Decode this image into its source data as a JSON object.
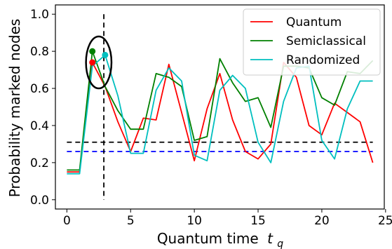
{
  "chart_data": {
    "type": "line",
    "xlabel": "Quantum time",
    "xlabel_sub": "q",
    "xlabel_var": "t",
    "ylabel": "Probability marked nodes",
    "xlim": [
      -0.9,
      24.9
    ],
    "ylim": [
      -0.05,
      1.05
    ],
    "xticks": [
      0,
      5,
      10,
      15,
      20,
      25
    ],
    "yticks": [
      0.0,
      0.2,
      0.4,
      0.6,
      0.8,
      1.0
    ],
    "xtick_labels": [
      "0",
      "5",
      "10",
      "15",
      "20",
      "25"
    ],
    "ytick_labels": [
      "0.0",
      "0.2",
      "0.4",
      "0.6",
      "0.8",
      "1.0"
    ],
    "grid": false,
    "legend_position": "upper right",
    "series": [
      {
        "name": "Quantum",
        "color": "#ff0000",
        "x": [
          0,
          1,
          2,
          3,
          4,
          5,
          6,
          7,
          8,
          9,
          10,
          11,
          12,
          13,
          14,
          15,
          16,
          17,
          18,
          19,
          20,
          21,
          22,
          23,
          24
        ],
        "y": [
          0.15,
          0.15,
          0.74,
          0.61,
          0.42,
          0.26,
          0.44,
          0.43,
          0.73,
          0.47,
          0.21,
          0.49,
          0.68,
          0.43,
          0.26,
          0.22,
          0.3,
          0.74,
          0.66,
          0.4,
          0.35,
          0.52,
          0.47,
          0.42,
          0.2
        ]
      },
      {
        "name": "Semiclassical",
        "color": "#008000",
        "x": [
          0,
          1,
          2,
          3,
          4,
          5,
          6,
          7,
          8,
          9,
          10,
          11,
          12,
          13,
          14,
          15,
          16,
          17,
          18,
          19,
          20,
          21,
          22,
          23,
          24
        ],
        "y": [
          0.16,
          0.16,
          0.8,
          0.61,
          0.48,
          0.38,
          0.38,
          0.68,
          0.66,
          0.61,
          0.32,
          0.34,
          0.76,
          0.63,
          0.53,
          0.55,
          0.39,
          0.72,
          0.72,
          0.71,
          0.55,
          0.51,
          0.69,
          0.68,
          0.75
        ]
      },
      {
        "name": "Randomized",
        "color": "#00bfbf",
        "x": [
          0,
          1,
          2,
          3,
          4,
          5,
          6,
          7,
          8,
          9,
          10,
          11,
          12,
          13,
          14,
          15,
          16,
          17,
          18,
          19,
          20,
          21,
          22,
          23,
          24
        ],
        "y": [
          0.14,
          0.14,
          0.72,
          0.78,
          0.56,
          0.25,
          0.25,
          0.59,
          0.71,
          0.64,
          0.24,
          0.21,
          0.59,
          0.67,
          0.6,
          0.31,
          0.2,
          0.53,
          0.71,
          0.72,
          0.32,
          0.22,
          0.49,
          0.64,
          0.64
        ]
      }
    ],
    "highlight_points": [
      {
        "series": "Quantum",
        "x": 2,
        "y": 0.74,
        "color": "#ff0000"
      },
      {
        "series": "Semiclassical",
        "x": 2,
        "y": 0.8,
        "color": "#008000"
      },
      {
        "series": "Randomized",
        "x": 3,
        "y": 0.78,
        "color": "#00bfbf"
      }
    ],
    "reference_lines": [
      {
        "orientation": "horizontal",
        "y": 0.31,
        "color": "#000000",
        "style": "dashed"
      },
      {
        "orientation": "horizontal",
        "y": 0.26,
        "color": "#0000ff",
        "style": "dashed"
      },
      {
        "orientation": "vertical",
        "x": 2.9,
        "color": "#000000",
        "style": "dashed"
      }
    ],
    "annotation_ellipse": {
      "cx": 2.5,
      "cy": 0.74,
      "rx": 1.0,
      "ry": 0.14,
      "color": "#000000"
    }
  }
}
